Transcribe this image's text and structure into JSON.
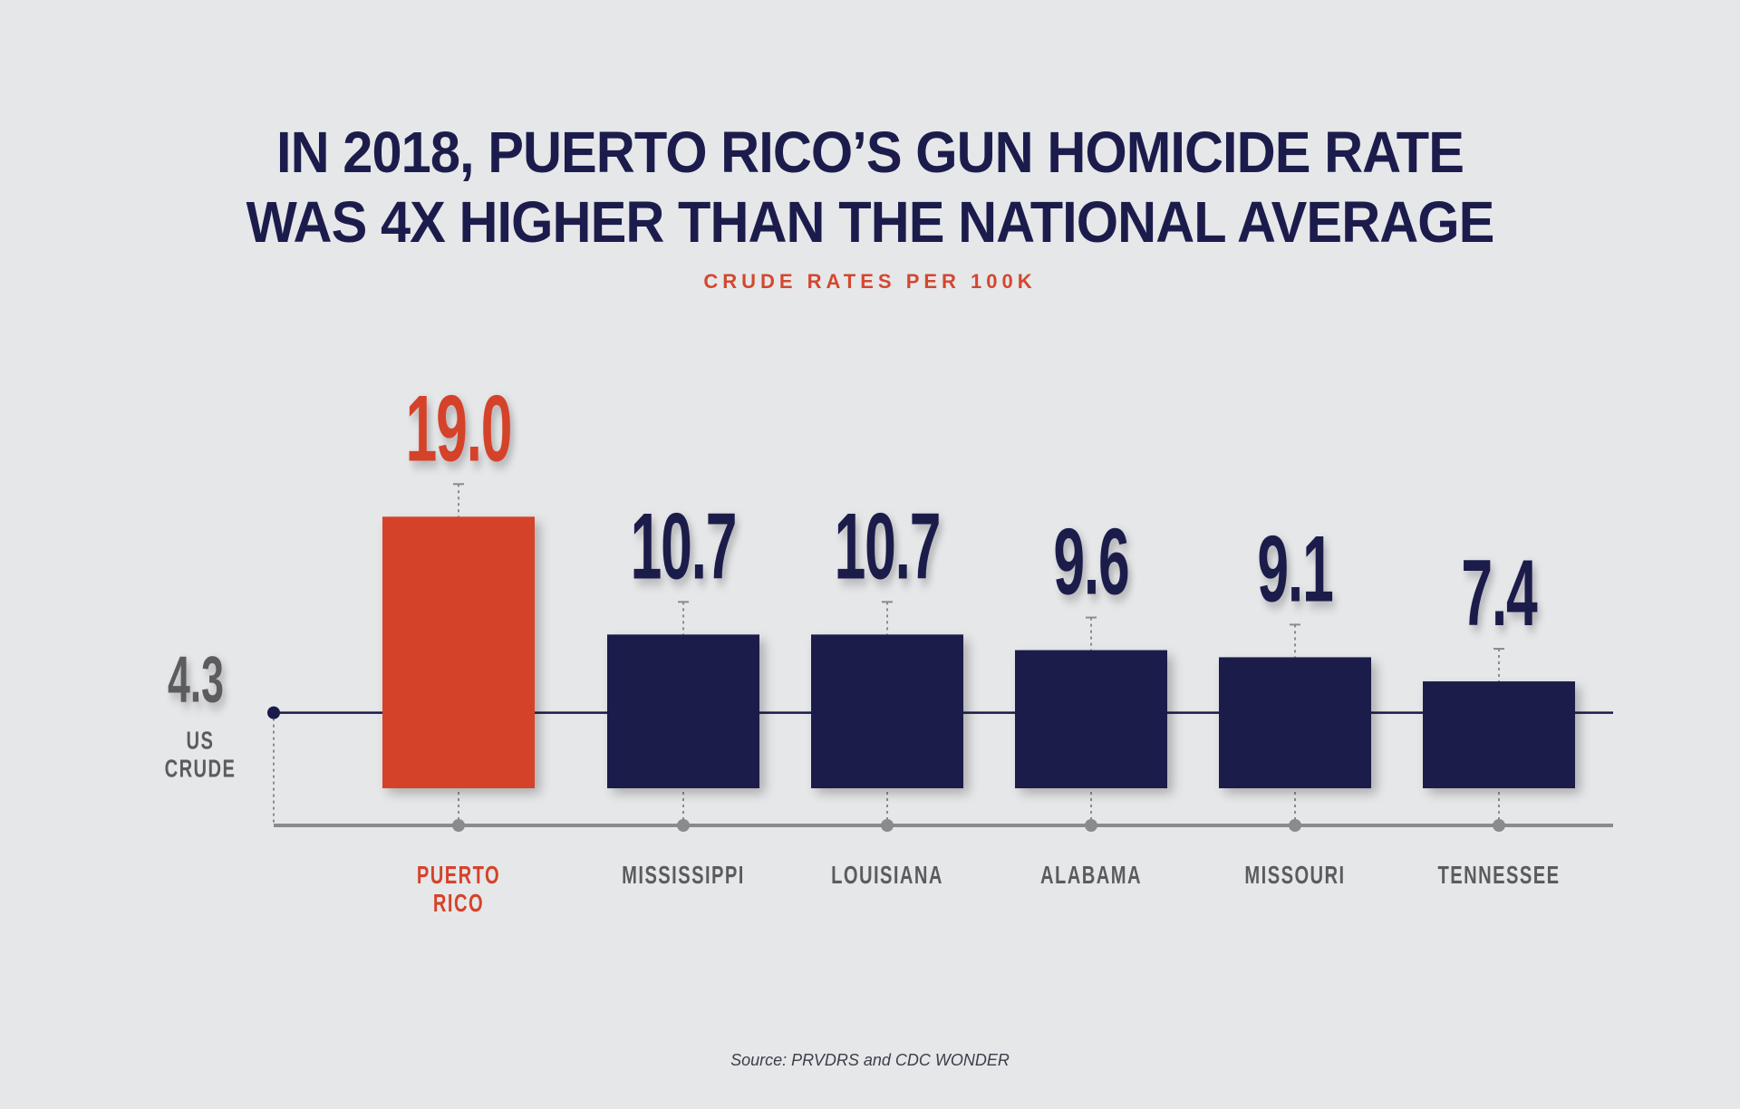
{
  "title": {
    "line1": "IN 2018, PUERTO RICO’S GUN HOMICIDE RATE",
    "line2": "WAS 4X HIGHER THAN THE NATIONAL AVERAGE"
  },
  "subtitle": "CRUDE RATES PER 100K",
  "source": "Source: PRVDRS and CDC WONDER",
  "colors": {
    "background": "#e6e7e9",
    "highlight": "#d5432b",
    "bar": "#1b1b4b",
    "label_gray": "#5b5c5f",
    "reference_gray": "#5b5c5f",
    "axis_gray": "#8a8b8e"
  },
  "chart_data": {
    "type": "bar",
    "title": "IN 2018, PUERTO RICO’S GUN HOMICIDE RATE WAS 4X HIGHER THAN THE NATIONAL AVERAGE",
    "subtitle": "CRUDE RATES PER 100K",
    "xlabel": "",
    "ylabel": "",
    "categories": [
      "PUERTO RICO",
      "MISSISSIPPI",
      "LOUISIANA",
      "ALABAMA",
      "MISSOURI",
      "TENNESSEE"
    ],
    "values": [
      19.0,
      10.7,
      10.7,
      9.6,
      9.1,
      7.4
    ],
    "value_labels": [
      "19.0",
      "10.7",
      "10.7",
      "9.6",
      "9.1",
      "7.4"
    ],
    "highlight_index": 0,
    "reference_line": {
      "value": 4.3,
      "value_label": "4.3",
      "label_lines": [
        "US",
        "CRUDE"
      ]
    },
    "grid": false,
    "legend": "none",
    "source": "Source: PRVDRS and CDC WONDER"
  }
}
